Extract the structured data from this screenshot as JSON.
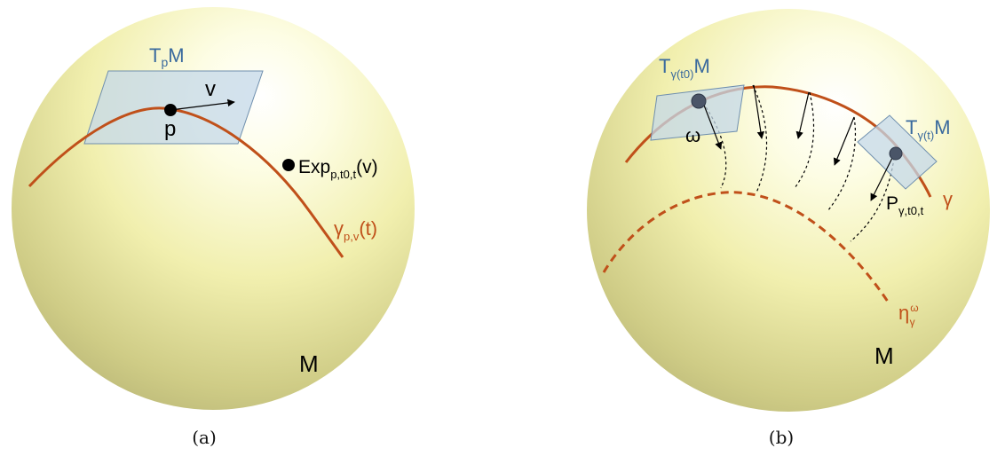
{
  "panel_a": {
    "caption": "(a)",
    "tangent_space": {
      "T": "T",
      "sub": "p",
      "M": "M"
    },
    "vector_label": "v",
    "point_label": "p",
    "exp_label": {
      "main": "Exp",
      "sub": "p,t0,t",
      "arg": "(v)"
    },
    "curve_label": {
      "main": "γ",
      "sub": "p,v",
      "arg": "(t)"
    },
    "manifold_label": "M"
  },
  "panel_b": {
    "caption": "(b)",
    "tangent_start": {
      "T": "T",
      "sub": "γ(t0)",
      "M": "M"
    },
    "tangent_end": {
      "T": "T",
      "sub": "γ(t)",
      "M": "M"
    },
    "omega_label": "ω",
    "transport_label": {
      "main": "P",
      "sub": "γ,t0,t"
    },
    "curve_label": "γ",
    "eta_label": {
      "main": "η",
      "sup": "ω",
      "sub": "γ"
    },
    "manifold_label": "M"
  },
  "colors": {
    "curve": "#c0501a",
    "tangent_text": "#3a6a9e",
    "plane_fill": "#c4d8ea",
    "plane_stroke": "#6f8fae",
    "sphere_light": "#fffff0",
    "sphere_dark": "#b8b67a"
  }
}
